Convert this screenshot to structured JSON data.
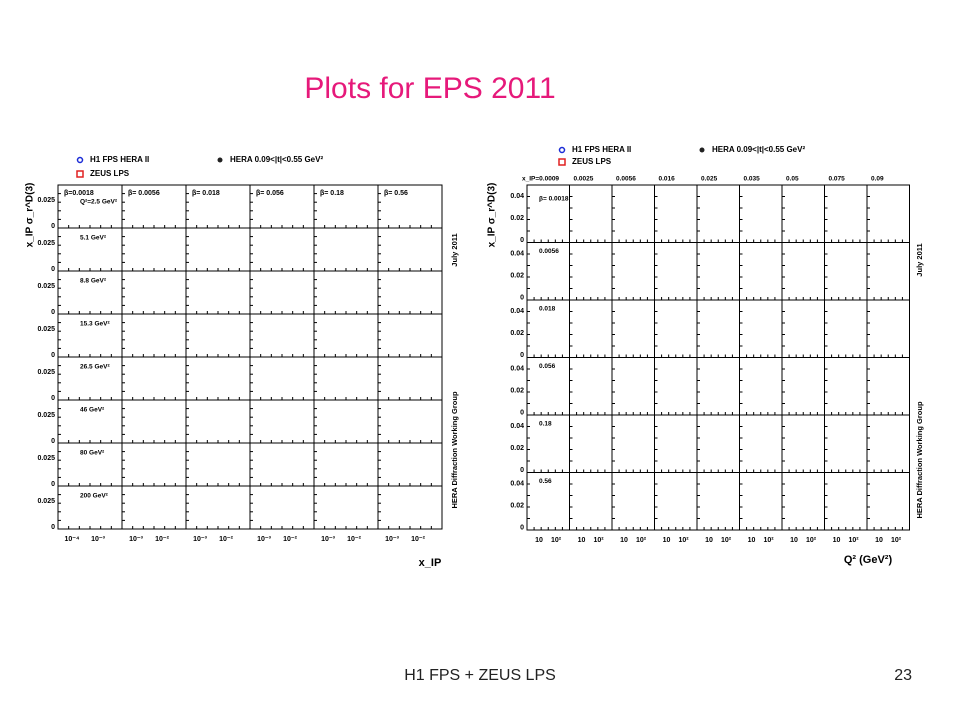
{
  "slide": {
    "title": "Plots for EPS 2011",
    "footer": "H1 FPS + ZEUS LPS",
    "page": "23"
  },
  "left": {
    "legend": [
      "H1 FPS HERA II",
      "HERA 0.09<|t|<0.55 GeV²",
      "ZEUS LPS"
    ],
    "y_label": "x_IP σ_r^D(3)",
    "x_label": "x_IP",
    "betas": [
      "β=0.0018",
      "β= 0.0056",
      "β= 0.018",
      "β= 0.056",
      "β= 0.18",
      "β= 0.56"
    ],
    "q2": [
      "Q²=2.5 GeV²",
      "5.1 GeV²",
      "8.8 GeV²",
      "15.3 GeV²",
      "26.5 GeV²",
      "46 GeV²",
      "80 GeV²",
      "200 GeV²"
    ],
    "yticks": [
      "0.025",
      "0"
    ],
    "xticks": [
      [
        "10⁻⁴",
        "10⁻³"
      ],
      [
        "10⁻³",
        "10⁻²"
      ],
      [
        "10⁻³",
        "10⁻²"
      ],
      [
        "10⁻³",
        "10⁻²"
      ],
      [
        "10⁻³",
        "10⁻²"
      ],
      [
        "10⁻³",
        "10⁻²"
      ]
    ],
    "side": [
      "July 2011",
      "HERA Diffraction Working Group"
    ]
  },
  "right": {
    "legend": [
      "H1 FPS HERA II",
      "HERA 0.09<|t|<0.55 GeV²",
      "ZEUS LPS"
    ],
    "y_label": "x_IP σ_r^D(3)",
    "x_label": "Q² (GeV²)",
    "xips": [
      "x_IP=0.0009",
      "0.0025",
      "0.0056",
      "0.016",
      "0.025",
      "0.035",
      "0.05",
      "0.075",
      "0.09"
    ],
    "betas": [
      "β= 0.0018",
      "0.0056",
      "0.018",
      "0.056",
      "0.18",
      "0.56"
    ],
    "yticks": [
      "0.04",
      "0.02",
      "0"
    ],
    "xticks": [
      "10",
      "10²"
    ],
    "side": [
      "July 2011",
      "HERA Diffraction Working Group"
    ]
  }
}
